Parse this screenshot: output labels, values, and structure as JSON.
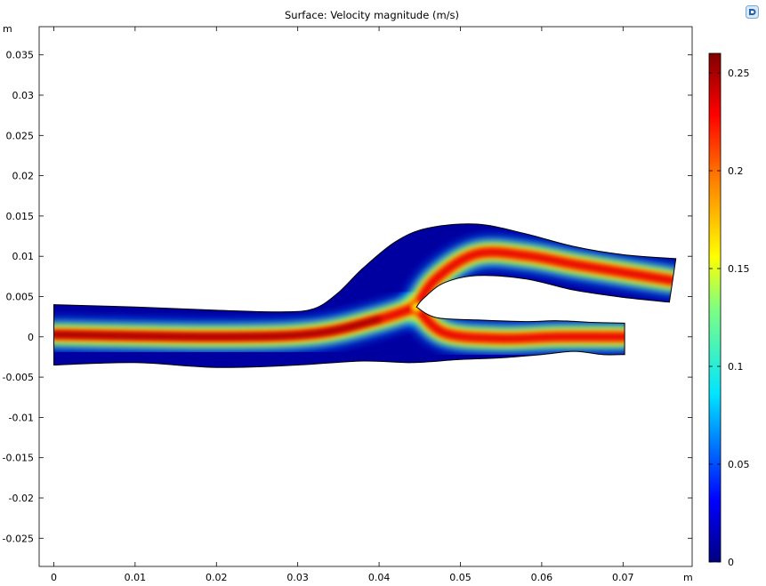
{
  "chart_data": {
    "type": "heatmap",
    "title": "Surface: Velocity magnitude (m/s)",
    "x_unit": "m",
    "y_unit": "m",
    "xlim": [
      -0.0018,
      0.0785
    ],
    "ylim": [
      -0.0285,
      0.0385
    ],
    "x_ticks": [
      0,
      0.01,
      0.02,
      0.03,
      0.04,
      0.05,
      0.06,
      0.07
    ],
    "x_tick_labels": [
      "0",
      "0.01",
      "0.02",
      "0.03",
      "0.04",
      "0.05",
      "0.06",
      "0.07"
    ],
    "y_ticks": [
      0.035,
      0.03,
      0.025,
      0.02,
      0.015,
      0.01,
      0.005,
      0,
      -0.005,
      -0.01,
      -0.015,
      -0.02,
      -0.025
    ],
    "y_tick_labels": [
      "0.035",
      "0.03",
      "0.025",
      "0.02",
      "0.015",
      "0.01",
      "0.005",
      "0",
      "-0.005",
      "-0.01",
      "-0.015",
      "-0.02",
      "-0.025"
    ],
    "colorbar": {
      "min": 0,
      "max": 0.26,
      "ticks": [
        0,
        0.05,
        0.1,
        0.15,
        0.2,
        0.25
      ],
      "tick_labels": [
        "0",
        "0.05",
        "0.1",
        "0.15",
        "0.2",
        "0.25"
      ],
      "colormap": "rainbow"
    },
    "grid": false,
    "geometry": {
      "main_upper": [
        [
          0,
          0.004
        ],
        [
          0.01,
          0.0037
        ],
        [
          0.02,
          0.0033
        ],
        [
          0.028,
          0.0031
        ],
        [
          0.032,
          0.0035
        ],
        [
          0.035,
          0.0055
        ],
        [
          0.038,
          0.0085
        ],
        [
          0.042,
          0.0118
        ],
        [
          0.046,
          0.0135
        ],
        [
          0.052,
          0.014
        ],
        [
          0.058,
          0.0128
        ],
        [
          0.064,
          0.0112
        ],
        [
          0.07,
          0.0102
        ],
        [
          0.0765,
          0.0097
        ]
      ],
      "main_lower": [
        [
          0,
          -0.0035
        ],
        [
          0.01,
          -0.0032
        ],
        [
          0.02,
          -0.0038
        ],
        [
          0.03,
          -0.0035
        ],
        [
          0.038,
          -0.003
        ],
        [
          0.044,
          -0.0032
        ],
        [
          0.05,
          -0.0028
        ],
        [
          0.055,
          -0.0026
        ],
        [
          0.06,
          -0.0022
        ],
        [
          0.064,
          -0.0018
        ],
        [
          0.0675,
          -0.0022
        ],
        [
          0.0702,
          -0.0022
        ]
      ],
      "upper_branch_end": [
        [
          0.0765,
          0.0097
        ],
        [
          0.0757,
          0.0043
        ]
      ],
      "lower_branch_end": [
        [
          0.0702,
          0.0017
        ],
        [
          0.0702,
          -0.0022
        ]
      ],
      "inner_upper": [
        [
          0.0757,
          0.0043
        ],
        [
          0.07,
          0.0049
        ],
        [
          0.064,
          0.0058
        ],
        [
          0.058,
          0.0072
        ],
        [
          0.052,
          0.0076
        ],
        [
          0.048,
          0.0067
        ],
        [
          0.0455,
          0.0048
        ],
        [
          0.0446,
          0.0037
        ]
      ],
      "inner_lower": [
        [
          0.0446,
          0.0037
        ],
        [
          0.047,
          0.0024
        ],
        [
          0.052,
          0.0021
        ],
        [
          0.058,
          0.0019
        ],
        [
          0.062,
          0.002
        ],
        [
          0.066,
          0.0018
        ],
        [
          0.0702,
          0.0017
        ]
      ],
      "core_main": [
        [
          0,
          0.0003
        ],
        [
          0.02,
          0.0
        ],
        [
          0.032,
          0.0004
        ],
        [
          0.04,
          0.0022
        ],
        [
          0.0446,
          0.0037
        ]
      ],
      "core_upper": [
        [
          0.0446,
          0.0037
        ],
        [
          0.047,
          0.0072
        ],
        [
          0.052,
          0.0103
        ],
        [
          0.058,
          0.0101
        ],
        [
          0.064,
          0.009
        ],
        [
          0.07,
          0.008
        ],
        [
          0.0761,
          0.007
        ]
      ],
      "core_lower": [
        [
          0.0446,
          0.0037
        ],
        [
          0.048,
          0.0005
        ],
        [
          0.055,
          -0.0002
        ],
        [
          0.062,
          0.0
        ],
        [
          0.0702,
          0.0
        ]
      ],
      "core_peak": [
        [
          0.0,
          0.245
        ],
        [
          0.02,
          0.255
        ],
        [
          0.03,
          0.258
        ],
        [
          0.038,
          0.24
        ],
        [
          0.0446,
          0.16
        ],
        [
          0.05,
          0.225
        ],
        [
          0.058,
          0.2
        ],
        [
          0.068,
          0.185
        ],
        [
          0.0755,
          0.18
        ],
        [
          0.052,
          0.195
        ],
        [
          0.06,
          0.185
        ],
        [
          0.07,
          0.175
        ]
      ]
    }
  }
}
